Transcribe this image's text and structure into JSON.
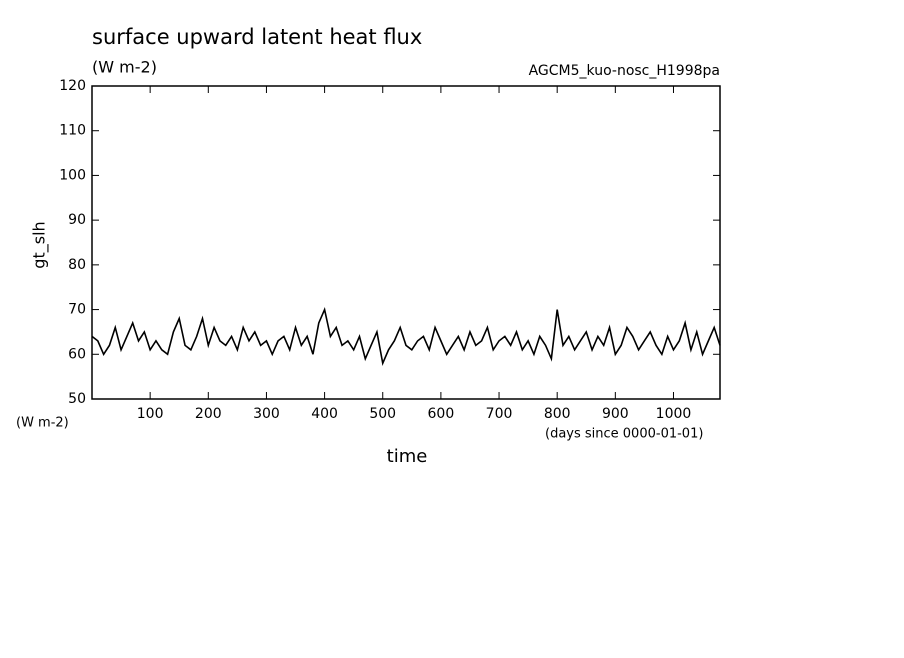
{
  "chart_data": {
    "type": "line",
    "title": "surface upward latent heat flux",
    "subtitle": "(W m-2)",
    "annotation": "AGCM5_kuo-nosc_H1998pa",
    "y_label": "gt_slh",
    "y_unit": "(W m-2)",
    "x_label": "time",
    "x_unit": "(days since 0000-01-01)",
    "color": "#000000",
    "xlim": [
      0,
      1080
    ],
    "xticks": [
      100,
      200,
      300,
      400,
      500,
      600,
      700,
      800,
      900,
      1000
    ],
    "ylim": [
      50,
      120
    ],
    "yticks": [
      50,
      60,
      70,
      80,
      90,
      100,
      110,
      120
    ],
    "x": [
      0,
      10,
      20,
      30,
      40,
      50,
      60,
      70,
      80,
      90,
      100,
      110,
      120,
      130,
      140,
      150,
      160,
      170,
      180,
      190,
      200,
      210,
      220,
      230,
      240,
      250,
      260,
      270,
      280,
      290,
      300,
      310,
      320,
      330,
      340,
      350,
      360,
      370,
      380,
      390,
      400,
      410,
      420,
      430,
      440,
      450,
      460,
      470,
      480,
      490,
      500,
      510,
      520,
      530,
      540,
      550,
      560,
      570,
      580,
      590,
      600,
      610,
      620,
      630,
      640,
      650,
      660,
      670,
      680,
      690,
      700,
      710,
      720,
      730,
      740,
      750,
      760,
      770,
      780,
      790,
      800,
      810,
      820,
      830,
      840,
      850,
      860,
      870,
      880,
      890,
      900,
      910,
      920,
      930,
      940,
      950,
      960,
      970,
      980,
      990,
      1000,
      1010,
      1020,
      1030,
      1040,
      1050,
      1060,
      1070,
      1080
    ],
    "values": [
      64,
      63,
      60,
      62,
      66,
      61,
      64,
      67,
      63,
      65,
      61,
      63,
      61,
      60,
      65,
      68,
      62,
      61,
      64,
      68,
      62,
      66,
      63,
      62,
      64,
      61,
      66,
      63,
      65,
      62,
      63,
      60,
      63,
      64,
      61,
      66,
      62,
      64,
      60,
      67,
      70,
      64,
      66,
      62,
      63,
      61,
      64,
      59,
      62,
      65,
      58,
      61,
      63,
      66,
      62,
      61,
      63,
      64,
      61,
      66,
      63,
      60,
      62,
      64,
      61,
      65,
      62,
      63,
      66,
      61,
      63,
      64,
      62,
      65,
      61,
      63,
      60,
      64,
      62,
      59,
      70,
      62,
      64,
      61,
      63,
      65,
      61,
      64,
      62,
      66,
      60,
      62,
      66,
      64,
      61,
      63,
      65,
      62,
      60,
      64,
      61,
      63,
      67,
      61,
      65,
      60,
      63,
      66,
      62
    ]
  }
}
